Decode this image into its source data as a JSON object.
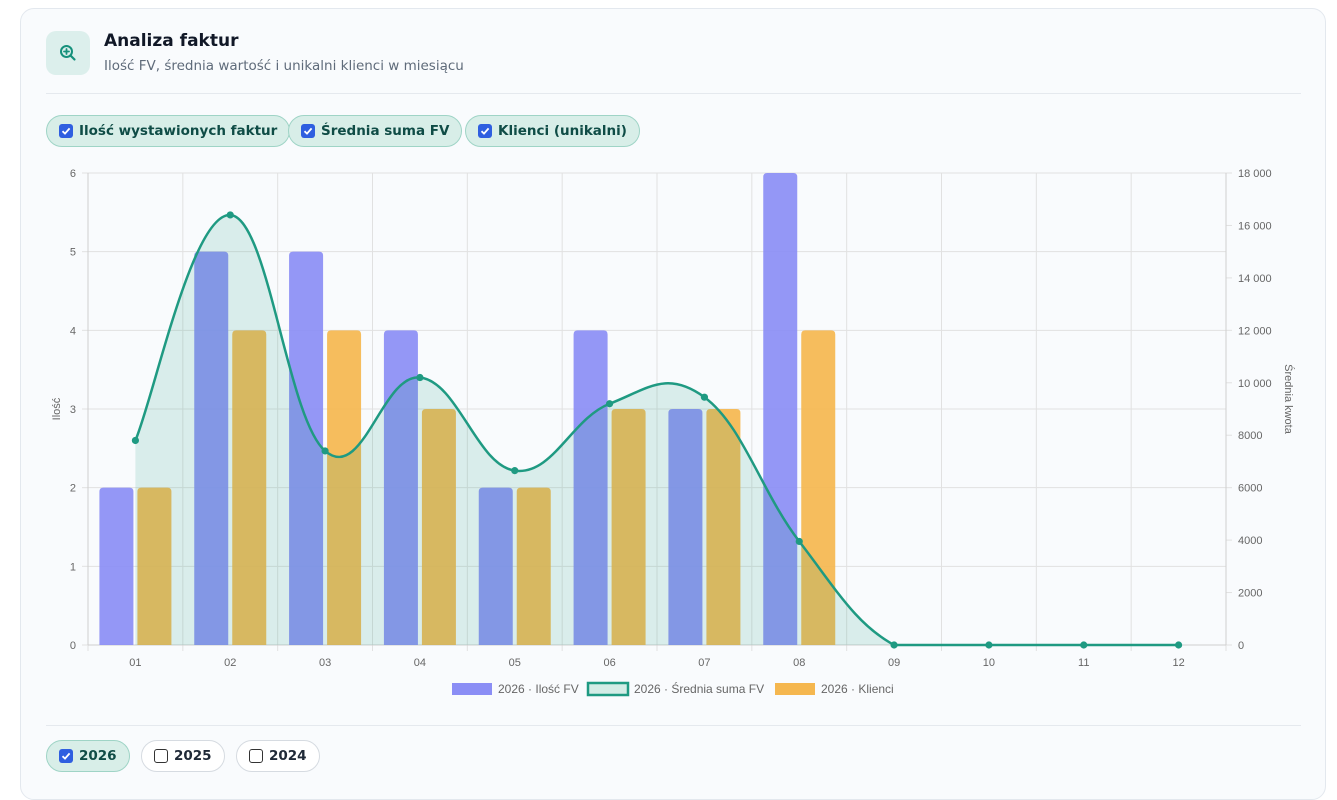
{
  "header": {
    "icon": "zoom-in-icon",
    "title": "Analiza faktur",
    "subtitle": "Ilość FV, średnia wartość i unikalni klienci w miesiącu"
  },
  "series_toggles": [
    {
      "label": "Ilość wystawionych faktur",
      "checked": true
    },
    {
      "label": "Średnia suma FV",
      "checked": true
    },
    {
      "label": "Klienci (unikalni)",
      "checked": true
    }
  ],
  "year_toggles": [
    {
      "label": "2026",
      "checked": true
    },
    {
      "label": "2025",
      "checked": false
    },
    {
      "label": "2024",
      "checked": false
    }
  ],
  "colors": {
    "accent": "#1a9c83",
    "invoices": "#8b8ef5",
    "clients": "#f5b74f",
    "avg_line": "#1f9a82"
  },
  "chart_data": {
    "type": "bar",
    "categories": [
      "01",
      "02",
      "03",
      "04",
      "05",
      "06",
      "07",
      "08",
      "09",
      "10",
      "11",
      "12"
    ],
    "y_left": {
      "label": "Ilość",
      "ticks": [
        "0",
        "1",
        "2",
        "3",
        "4",
        "5",
        "6"
      ],
      "range": [
        0,
        6
      ]
    },
    "y_right": {
      "label": "Średnia kwota",
      "ticks": [
        "0",
        "2000",
        "4000",
        "6000",
        "8000",
        "10 000",
        "12 000",
        "14 000",
        "16 000",
        "18 000"
      ],
      "range": [
        0,
        18000
      ]
    },
    "series": [
      {
        "name": "2026 · Ilość FV",
        "type": "bar",
        "axis": "left",
        "values": [
          2,
          5,
          5,
          4,
          2,
          4,
          3,
          6,
          0,
          0,
          0,
          0
        ]
      },
      {
        "name": "2026 · Średnia suma FV",
        "type": "line",
        "axis": "right",
        "values": [
          7800,
          16400,
          7400,
          10200,
          6650,
          9200,
          9450,
          3950,
          0,
          0,
          0,
          0
        ]
      },
      {
        "name": "2026 · Klienci",
        "type": "bar",
        "axis": "left",
        "values": [
          2,
          4,
          4,
          3,
          2,
          3,
          3,
          4,
          0,
          0,
          0,
          0
        ]
      }
    ],
    "grid": true,
    "legend": "bottom"
  }
}
